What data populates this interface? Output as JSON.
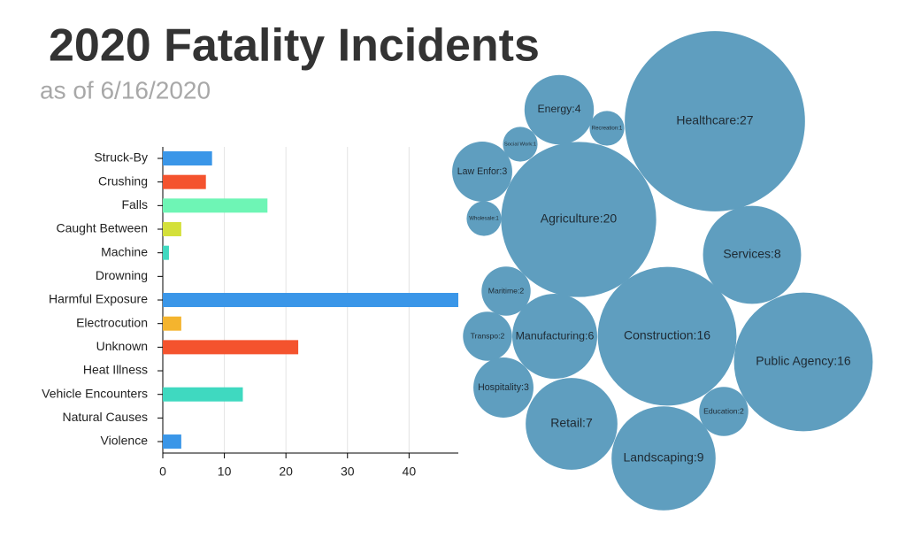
{
  "title": "2020 Fatality Incidents",
  "subtitle": "as of 6/16/2020",
  "chart_data": [
    {
      "type": "hbar",
      "categories": [
        "Struck-By",
        "Crushing",
        "Falls",
        "Caught Between",
        "Machine",
        "Drowning",
        "Harmful Exposure",
        "Electrocution",
        "Unknown",
        "Heat Illness",
        "Vehicle Encounters",
        "Natural Causes",
        "Violence"
      ],
      "values": [
        8,
        7,
        17,
        3,
        1,
        0,
        48,
        3,
        22,
        0,
        13,
        0,
        3
      ],
      "colors": [
        "#3a96e8",
        "#f4532e",
        "#6ef5b5",
        "#d4e03a",
        "#3fd9c0",
        null,
        "#3a96e8",
        "#f4b42e",
        "#f4532e",
        null,
        "#3fd9c0",
        null,
        "#3a96e8"
      ],
      "xlim": [
        0,
        48
      ],
      "xticks": [
        0,
        10,
        20,
        30,
        40
      ],
      "grid": true
    },
    {
      "type": "bubble",
      "labels": [
        "Healthcare:27",
        "Energy:4",
        "Recreation:1",
        "Social Work:1",
        "Law Enfor:3",
        "Wholesale:1",
        "Agriculture:20",
        "Services:8",
        "Maritime:2",
        "Transpo:2",
        "Manufacturing:6",
        "Construction:16",
        "Public Agency:16",
        "Hospitality:3",
        "Education:2",
        "Retail:7",
        "Landscaping:9"
      ],
      "values": [
        27,
        4,
        1,
        1,
        3,
        1,
        20,
        8,
        2,
        2,
        6,
        16,
        16,
        3,
        2,
        7,
        9
      ],
      "color": "#5f9ebf"
    }
  ]
}
